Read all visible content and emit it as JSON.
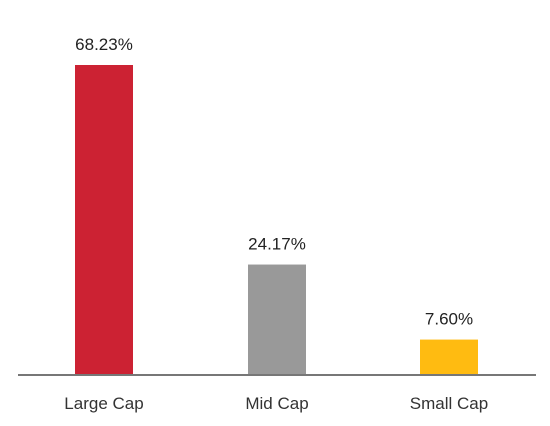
{
  "chart_data": {
    "type": "bar",
    "categories": [
      "Large Cap",
      "Mid Cap",
      "Small Cap"
    ],
    "values": [
      68.23,
      24.17,
      7.6
    ],
    "value_labels": [
      "68.23%",
      "24.17%",
      "7.60%"
    ],
    "colors": [
      "#cc2233",
      "#999999",
      "#ffbb11"
    ],
    "axis_color": "#777777",
    "ylim": [
      0,
      68.23
    ],
    "grid": false,
    "title": "",
    "xlabel": "",
    "ylabel": ""
  }
}
